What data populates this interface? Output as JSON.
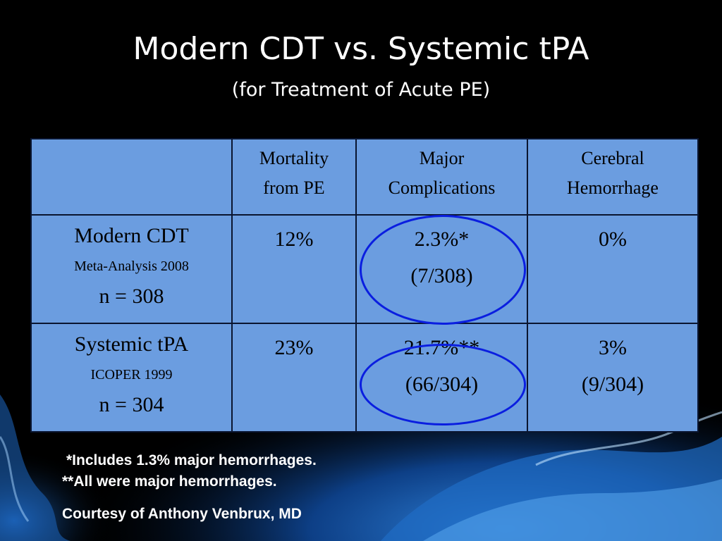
{
  "title": "Modern CDT vs. Systemic tPA",
  "subtitle": "(for Treatment of Acute PE)",
  "table": {
    "headers": [
      "",
      "Mortality from PE",
      "Major Complications",
      "Cerebral Hemorrhage"
    ],
    "header_lines": [
      [],
      [
        "Mortality",
        "from PE"
      ],
      [
        "Major",
        "Complications"
      ],
      [
        "Cerebral",
        "Hemorrhage"
      ]
    ],
    "rows": [
      {
        "name": "Modern CDT",
        "source": "Meta-Analysis 2008",
        "n": "n = 308",
        "mortality": "12%",
        "complications": "2.3%*",
        "complications_count": "(7/308)",
        "hemorrhage": "0%",
        "hemorrhage_count": ""
      },
      {
        "name": "Systemic tPA",
        "source": "ICOPER 1999",
        "n": "n = 304",
        "mortality": "23%",
        "complications": "21.7%**",
        "complications_count": "(66/304)",
        "hemorrhage": "3%",
        "hemorrhage_count": "(9/304)"
      }
    ]
  },
  "footnotes": {
    "note1": "*Includes 1.3% major hemorrhages.",
    "note2": "**All were major hemorrhages.",
    "credit": "Courtesy of Anthony Venbrux, MD"
  },
  "colors": {
    "background": "#000000",
    "table_fill": "#6b9de0",
    "highlight_circle": "#0a1ee0",
    "text": "#ffffff"
  }
}
